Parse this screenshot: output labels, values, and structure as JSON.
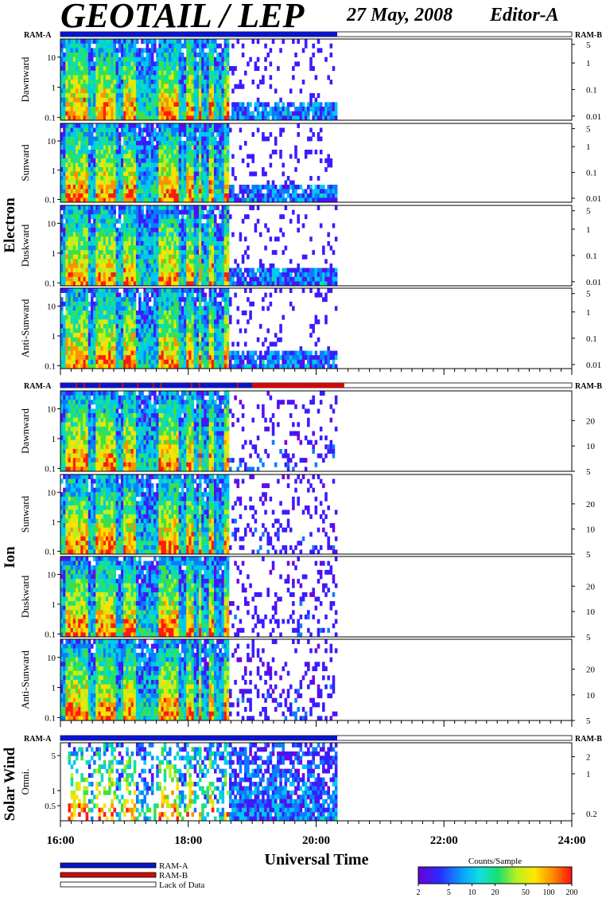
{
  "header": {
    "title": "GEOTAIL / LEP",
    "date": "27 May, 2008",
    "editor": "Editor-A"
  },
  "chart_data": {
    "type": "heatmap",
    "xlabel": "Universal Time",
    "x_ticks": [
      "16:00",
      "18:00",
      "20:00",
      "22:00",
      "24:00"
    ],
    "xlim_hours": [
      16,
      24
    ],
    "data_end_hour": 20.33,
    "colorbar": {
      "title": "Counts/Sample",
      "ticks": [
        "2",
        "5",
        "10",
        "20",
        "50",
        "100",
        "200"
      ],
      "tick_values": [
        2,
        5,
        10,
        20,
        50,
        100,
        200
      ],
      "range": [
        2,
        200
      ],
      "scale": "log"
    },
    "legend": [
      {
        "label": "RAM-A",
        "color": "#0a14c8"
      },
      {
        "label": "RAM-B",
        "color": "#d20a0a"
      },
      {
        "label": "Lack of Data",
        "color": "#ffffff"
      }
    ],
    "groups": [
      {
        "name": "Electron",
        "ram_left": "RAM-A",
        "ram_right": "RAM-B",
        "ram_bar": "blue",
        "panels": [
          {
            "label": "Dawnward",
            "y_ticks": [
              "10",
              "1",
              "0.1"
            ],
            "y_tick_values": [
              10,
              1,
              0.1
            ],
            "ylim": [
              0.08,
              40
            ],
            "right_ticks": [
              "5",
              "1",
              "0.1",
              "0.01"
            ],
            "right_tick_values": [
              5,
              1,
              0.1,
              0.01
            ],
            "right_lim": [
              0.007,
              8
            ]
          },
          {
            "label": "Sunward",
            "y_ticks": [
              "10",
              "1",
              "0.1"
            ],
            "y_tick_values": [
              10,
              1,
              0.1
            ],
            "ylim": [
              0.08,
              40
            ],
            "right_ticks": [
              "5",
              "1",
              "0.1",
              "0.01"
            ],
            "right_tick_values": [
              5,
              1,
              0.1,
              0.01
            ],
            "right_lim": [
              0.007,
              8
            ]
          },
          {
            "label": "Duskward",
            "y_ticks": [
              "10",
              "1",
              "0.1"
            ],
            "y_tick_values": [
              10,
              1,
              0.1
            ],
            "ylim": [
              0.08,
              40
            ],
            "right_ticks": [
              "5",
              "1",
              "0.1",
              "0.01"
            ],
            "right_tick_values": [
              5,
              1,
              0.1,
              0.01
            ],
            "right_lim": [
              0.007,
              8
            ]
          },
          {
            "label": "Anti-Sunward",
            "y_ticks": [
              "10",
              "1",
              "0.1"
            ],
            "y_tick_values": [
              10,
              1,
              0.1
            ],
            "ylim": [
              0.08,
              40
            ],
            "right_ticks": [
              "5",
              "1",
              "0.1",
              "0.01"
            ],
            "right_tick_values": [
              5,
              1,
              0.1,
              0.01
            ],
            "right_lim": [
              0.007,
              8
            ]
          }
        ]
      },
      {
        "name": "Ion",
        "ram_left": "RAM-A",
        "ram_right": "RAM-B",
        "ram_bar": "mixed",
        "panels": [
          {
            "label": "Dawnward",
            "y_ticks": [
              "10",
              "1",
              "0.1"
            ],
            "y_tick_values": [
              10,
              1,
              0.1
            ],
            "ylim": [
              0.08,
              40
            ],
            "right_ticks": [
              "20",
              "10",
              "5"
            ],
            "right_tick_values": [
              20,
              10,
              5
            ],
            "right_lim": [
              5,
              45
            ]
          },
          {
            "label": "Sunward",
            "y_ticks": [
              "10",
              "1",
              "0.1"
            ],
            "y_tick_values": [
              10,
              1,
              0.1
            ],
            "ylim": [
              0.08,
              40
            ],
            "right_ticks": [
              "20",
              "10",
              "5"
            ],
            "right_tick_values": [
              20,
              10,
              5
            ],
            "right_lim": [
              5,
              45
            ]
          },
          {
            "label": "Duskward",
            "y_ticks": [
              "10",
              "1",
              "0.1"
            ],
            "y_tick_values": [
              10,
              1,
              0.1
            ],
            "ylim": [
              0.08,
              40
            ],
            "right_ticks": [
              "20",
              "10",
              "5"
            ],
            "right_tick_values": [
              20,
              10,
              5
            ],
            "right_lim": [
              5,
              45
            ]
          },
          {
            "label": "Anti-Sunward",
            "y_ticks": [
              "10",
              "1",
              "0.1"
            ],
            "y_tick_values": [
              10,
              1,
              0.1
            ],
            "ylim": [
              0.08,
              40
            ],
            "right_ticks": [
              "20",
              "10",
              "5"
            ],
            "right_tick_values": [
              20,
              10,
              5
            ],
            "right_lim": [
              5,
              45
            ]
          }
        ]
      },
      {
        "name": "Solar Wind",
        "ram_left": "RAM-A",
        "ram_right": "RAM-B",
        "ram_bar": "blue",
        "panels": [
          {
            "label": "Omni.",
            "y_ticks": [
              "5",
              "1",
              "0.5"
            ],
            "y_tick_values": [
              5,
              1,
              0.5
            ],
            "ylim": [
              0.25,
              9
            ],
            "right_ticks": [
              "2",
              "1",
              "0.2"
            ],
            "right_tick_values": [
              2,
              1,
              0.2
            ],
            "right_lim": [
              0.15,
              3.5
            ]
          }
        ]
      }
    ]
  }
}
